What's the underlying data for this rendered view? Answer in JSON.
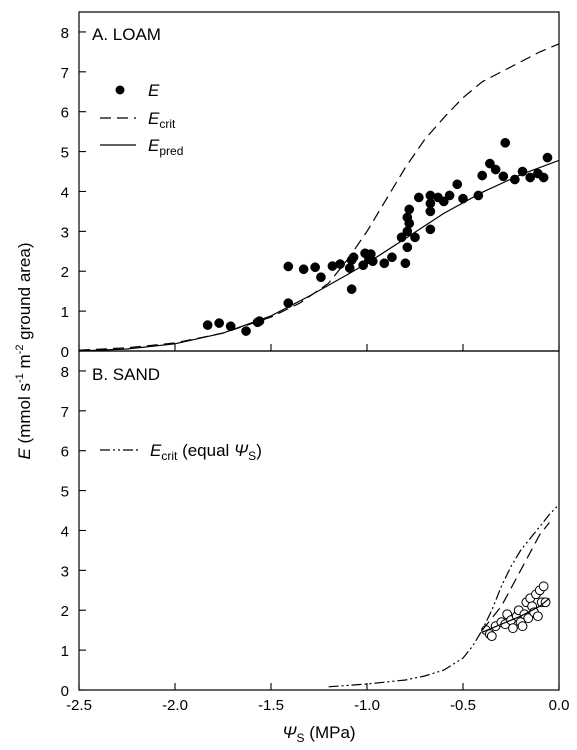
{
  "chart_data": [
    {
      "type": "scatter",
      "panel_label": "A. LOAM",
      "xlim": [
        -2.5,
        0.0
      ],
      "ylim": [
        0,
        8.5
      ],
      "y_ticks": [
        "0",
        "1",
        "2",
        "3",
        "4",
        "5",
        "6",
        "7",
        "8"
      ],
      "legend": [
        {
          "key": "E",
          "style": "filled-circle",
          "main": "E",
          "sub": ""
        },
        {
          "key": "Ecrit",
          "style": "dashed",
          "main": "E",
          "sub": "crit"
        },
        {
          "key": "Epred",
          "style": "solid",
          "main": "E",
          "sub": "pred"
        }
      ],
      "series": [
        {
          "name": "E",
          "style": "filled-circle",
          "points": [
            [
              -1.83,
              0.65
            ],
            [
              -1.77,
              0.7
            ],
            [
              -1.71,
              0.62
            ],
            [
              -1.63,
              0.5
            ],
            [
              -1.57,
              0.72
            ],
            [
              -1.56,
              0.75
            ],
            [
              -1.41,
              1.2
            ],
            [
              -1.41,
              2.12
            ],
            [
              -1.33,
              2.05
            ],
            [
              -1.27,
              2.1
            ],
            [
              -1.24,
              1.85
            ],
            [
              -1.18,
              2.13
            ],
            [
              -1.14,
              2.18
            ],
            [
              -1.09,
              2.08
            ],
            [
              -1.08,
              1.55
            ],
            [
              -1.08,
              2.28
            ],
            [
              -1.07,
              2.35
            ],
            [
              -1.02,
              2.15
            ],
            [
              -1.01,
              2.45
            ],
            [
              -0.99,
              2.3
            ],
            [
              -0.98,
              2.43
            ],
            [
              -0.97,
              2.25
            ],
            [
              -0.91,
              2.2
            ],
            [
              -0.87,
              2.35
            ],
            [
              -0.82,
              2.85
            ],
            [
              -0.8,
              2.2
            ],
            [
              -0.79,
              2.6
            ],
            [
              -0.79,
              3.0
            ],
            [
              -0.79,
              3.35
            ],
            [
              -0.78,
              3.55
            ],
            [
              -0.78,
              3.2
            ],
            [
              -0.75,
              2.85
            ],
            [
              -0.73,
              3.85
            ],
            [
              -0.67,
              3.9
            ],
            [
              -0.67,
              3.7
            ],
            [
              -0.67,
              3.5
            ],
            [
              -0.67,
              3.05
            ],
            [
              -0.63,
              3.85
            ],
            [
              -0.6,
              3.75
            ],
            [
              -0.57,
              3.9
            ],
            [
              -0.53,
              4.18
            ],
            [
              -0.5,
              3.82
            ],
            [
              -0.42,
              3.9
            ],
            [
              -0.4,
              4.4
            ],
            [
              -0.36,
              4.7
            ],
            [
              -0.33,
              4.55
            ],
            [
              -0.29,
              4.38
            ],
            [
              -0.28,
              5.22
            ],
            [
              -0.23,
              4.3
            ],
            [
              -0.19,
              4.5
            ],
            [
              -0.15,
              4.35
            ],
            [
              -0.11,
              4.45
            ],
            [
              -0.08,
              4.35
            ],
            [
              -0.06,
              4.85
            ]
          ]
        },
        {
          "name": "Ecrit",
          "style": "dashed",
          "points": [
            [
              -2.5,
              0.02
            ],
            [
              -2.25,
              0.08
            ],
            [
              -2.0,
              0.2
            ],
            [
              -1.75,
              0.45
            ],
            [
              -1.5,
              0.85
            ],
            [
              -1.35,
              1.2
            ],
            [
              -1.2,
              1.7
            ],
            [
              -1.1,
              2.3
            ],
            [
              -1.0,
              3.0
            ],
            [
              -0.9,
              3.8
            ],
            [
              -0.8,
              4.6
            ],
            [
              -0.7,
              5.3
            ],
            [
              -0.6,
              5.85
            ],
            [
              -0.5,
              6.35
            ],
            [
              -0.4,
              6.75
            ],
            [
              -0.3,
              7.0
            ],
            [
              -0.2,
              7.25
            ],
            [
              -0.1,
              7.5
            ],
            [
              0.0,
              7.7
            ]
          ]
        },
        {
          "name": "Epred",
          "style": "solid",
          "points": [
            [
              -2.5,
              0.0
            ],
            [
              -2.25,
              0.05
            ],
            [
              -2.0,
              0.18
            ],
            [
              -1.75,
              0.45
            ],
            [
              -1.5,
              0.88
            ],
            [
              -1.3,
              1.38
            ],
            [
              -1.1,
              1.92
            ],
            [
              -1.0,
              2.2
            ],
            [
              -0.8,
              2.82
            ],
            [
              -0.6,
              3.45
            ],
            [
              -0.4,
              3.98
            ],
            [
              -0.2,
              4.42
            ],
            [
              0.0,
              4.78
            ]
          ]
        }
      ]
    },
    {
      "type": "scatter",
      "panel_label": "B. SAND",
      "xlabel_main": "Ψ",
      "xlabel_sub": "S",
      "xlabel_suffix": " (MPa)",
      "ylabel_prefix": "E",
      "ylabel_middle": " (mmol s",
      "ylabel_exp1": "-1",
      "ylabel_mid2": " m",
      "ylabel_exp2": "-2",
      "ylabel_suffix": " ground area)",
      "xlim": [
        -2.5,
        0.0
      ],
      "ylim": [
        0,
        8.5
      ],
      "x_ticks": [
        "-2.5",
        "-2.0",
        "-1.5",
        "-1.0",
        "-0.5",
        "0.0"
      ],
      "y_ticks": [
        "0",
        "1",
        "2",
        "3",
        "4",
        "5",
        "6",
        "7",
        "8"
      ],
      "legend": [
        {
          "key": "Ecrit_equal",
          "style": "dash-dot-dot",
          "main": "E",
          "sub": "crit",
          "tail": " (equal ",
          "psi": "Ψ",
          "psi_sub": "S",
          "close": ")"
        }
      ],
      "series": [
        {
          "name": "E",
          "style": "open-circle",
          "points": [
            [
              -0.38,
              1.5
            ],
            [
              -0.36,
              1.4
            ],
            [
              -0.35,
              1.35
            ],
            [
              -0.33,
              1.6
            ],
            [
              -0.3,
              1.7
            ],
            [
              -0.28,
              1.65
            ],
            [
              -0.27,
              1.9
            ],
            [
              -0.25,
              1.75
            ],
            [
              -0.24,
              1.55
            ],
            [
              -0.22,
              1.85
            ],
            [
              -0.21,
              2.0
            ],
            [
              -0.2,
              1.7
            ],
            [
              -0.19,
              1.6
            ],
            [
              -0.18,
              1.9
            ],
            [
              -0.17,
              2.2
            ],
            [
              -0.16,
              1.8
            ],
            [
              -0.15,
              2.3
            ],
            [
              -0.14,
              2.1
            ],
            [
              -0.13,
              1.95
            ],
            [
              -0.12,
              2.4
            ],
            [
              -0.11,
              1.85
            ],
            [
              -0.1,
              2.5
            ],
            [
              -0.09,
              2.2
            ],
            [
              -0.08,
              2.6
            ],
            [
              -0.07,
              2.2
            ]
          ]
        },
        {
          "name": "Ecrit",
          "style": "dashed",
          "points": [
            [
              -0.4,
              1.5
            ],
            [
              -0.3,
              2.1
            ],
            [
              -0.2,
              3.0
            ],
            [
              -0.1,
              3.9
            ],
            [
              -0.05,
              4.2
            ]
          ]
        },
        {
          "name": "Epred",
          "style": "solid",
          "points": [
            [
              -0.4,
              1.45
            ],
            [
              -0.3,
              1.65
            ],
            [
              -0.2,
              1.85
            ],
            [
              -0.1,
              2.1
            ],
            [
              -0.05,
              2.3
            ]
          ]
        },
        {
          "name": "Ecrit_equal",
          "style": "dash-dot-dot",
          "points": [
            [
              -1.2,
              0.08
            ],
            [
              -1.0,
              0.15
            ],
            [
              -0.8,
              0.25
            ],
            [
              -0.7,
              0.35
            ],
            [
              -0.6,
              0.5
            ],
            [
              -0.5,
              0.8
            ],
            [
              -0.45,
              1.1
            ],
            [
              -0.4,
              1.5
            ],
            [
              -0.35,
              2.0
            ],
            [
              -0.3,
              2.6
            ],
            [
              -0.25,
              3.1
            ],
            [
              -0.2,
              3.5
            ],
            [
              -0.15,
              3.8
            ],
            [
              -0.1,
              4.1
            ],
            [
              -0.05,
              4.4
            ],
            [
              0.0,
              4.65
            ]
          ]
        }
      ]
    }
  ]
}
